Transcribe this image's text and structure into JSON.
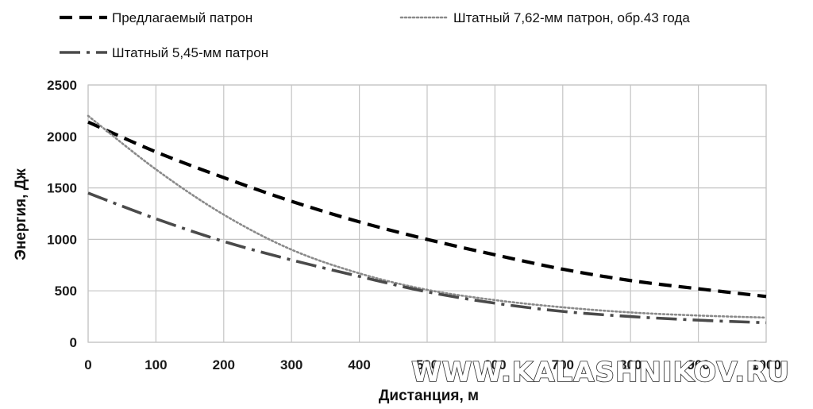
{
  "chart_data": {
    "type": "line",
    "title": "",
    "xlabel": "Дистанция, м",
    "ylabel": "Энергия, Дж",
    "xlim": [
      0,
      1000
    ],
    "ylim": [
      0,
      2500
    ],
    "x_ticks": [
      "0",
      "100",
      "200",
      "300",
      "400",
      "500",
      "600",
      "700",
      "800",
      "900",
      "1000"
    ],
    "y_ticks": [
      "0",
      "500",
      "1000",
      "1500",
      "2000",
      "2500"
    ],
    "grid": true,
    "legend_position": "top",
    "series": [
      {
        "name": "Предлагаемый патрон",
        "style": "dashed",
        "color": "#000000",
        "x": [
          0,
          100,
          200,
          300,
          400,
          500,
          600,
          700,
          800,
          900,
          1000
        ],
        "y": [
          2140,
          1850,
          1600,
          1370,
          1170,
          1000,
          850,
          710,
          600,
          520,
          445
        ]
      },
      {
        "name": "Штатный 7,62-мм патрон, обр.43 года",
        "style": "dotted",
        "color": "#8a8a8a",
        "x": [
          0,
          100,
          200,
          300,
          400,
          500,
          600,
          700,
          800,
          900,
          1000
        ],
        "y": [
          2200,
          1680,
          1240,
          900,
          670,
          510,
          410,
          340,
          290,
          260,
          240
        ]
      },
      {
        "name": "Штатный 5,45-мм патрон",
        "style": "dashdot",
        "color": "#4a4a4a",
        "x": [
          0,
          100,
          200,
          300,
          400,
          500,
          600,
          700,
          800,
          900,
          1000
        ],
        "y": [
          1450,
          1200,
          980,
          800,
          640,
          490,
          380,
          300,
          250,
          215,
          190
        ]
      }
    ]
  },
  "watermark": "WWW.KALASHNIKOV.RU"
}
